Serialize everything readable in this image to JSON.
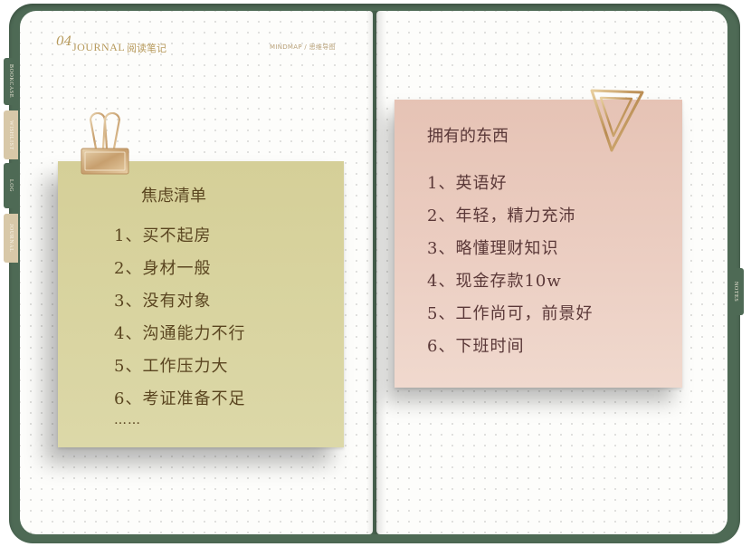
{
  "header": {
    "number": "04",
    "journal": "JOURNAL",
    "section_cn": "阅读笔记",
    "right_label": "MINDMAP / 思维导图"
  },
  "tabs": {
    "left": [
      "BOOKCASE",
      "WISHLIST",
      "LOG",
      "JOURNAL"
    ],
    "right": [
      "NOTES"
    ]
  },
  "anxiety_note": {
    "title": "焦虑清单",
    "items": [
      "1、买不起房",
      "2、身材一般",
      "3、没有对象",
      "4、沟通能力不行",
      "5、工作压力大",
      "6、考证准备不足"
    ],
    "ellipsis": "……"
  },
  "owned_note": {
    "title": "拥有的东西",
    "items": [
      "1、英语好",
      "2、年轻，精力充沛",
      "3、略懂理财知识",
      "4、现金存款10w",
      "5、工作尚可，前景好",
      "6、下班时间"
    ]
  },
  "colors": {
    "cover": "#4e6a55",
    "yellow_note": "#d8d39e",
    "pink_note": "#ebcdc1",
    "gold_accent": "#b79a5c"
  }
}
